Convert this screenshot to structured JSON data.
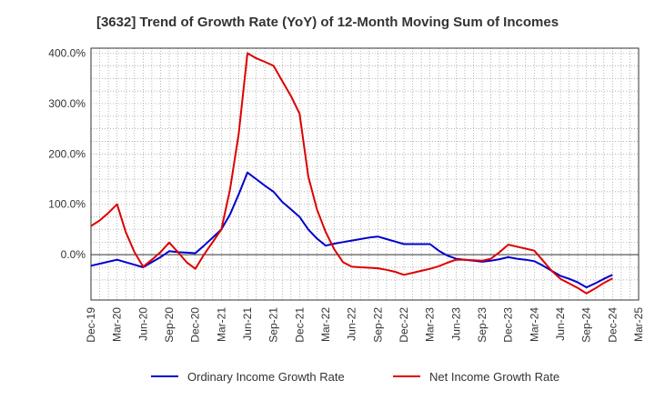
{
  "chart_data": {
    "type": "line",
    "title": "[3632]  Trend of Growth Rate (YoY) of 12-Month Moving Sum of Incomes",
    "xlabel": "",
    "ylabel": "",
    "x_ticks": [
      "Dec-19",
      "Mar-20",
      "Jun-20",
      "Sep-20",
      "Dec-20",
      "Mar-21",
      "Jun-21",
      "Sep-21",
      "Dec-21",
      "Mar-22",
      "Jun-22",
      "Sep-22",
      "Dec-22",
      "Mar-23",
      "Jun-23",
      "Sep-23",
      "Dec-23",
      "Mar-24",
      "Jun-24",
      "Sep-24",
      "Dec-24",
      "Mar-25"
    ],
    "y_ticks": [
      "400.0%",
      "300.0%",
      "200.0%",
      "100.0%",
      "0.0%"
    ],
    "y_tick_values": [
      400,
      300,
      200,
      100,
      0
    ],
    "ylim": [
      -90,
      410
    ],
    "x_range": [
      "Dec-19",
      "Mar-25"
    ],
    "grid": true,
    "legend_position": "bottom",
    "x": [
      "Dec-19",
      "Jan-20",
      "Feb-20",
      "Mar-20",
      "Apr-20",
      "May-20",
      "Jun-20",
      "Jul-20",
      "Aug-20",
      "Sep-20",
      "Oct-20",
      "Nov-20",
      "Dec-20",
      "Jan-21",
      "Feb-21",
      "Mar-21",
      "Apr-21",
      "May-21",
      "Jun-21",
      "Jul-21",
      "Aug-21",
      "Sep-21",
      "Oct-21",
      "Nov-21",
      "Dec-21",
      "Jan-22",
      "Feb-22",
      "Mar-22",
      "Apr-22",
      "May-22",
      "Jun-22",
      "Jul-22",
      "Aug-22",
      "Sep-22",
      "Oct-22",
      "Nov-22",
      "Dec-22",
      "Jan-23",
      "Feb-23",
      "Mar-23",
      "Apr-23",
      "May-23",
      "Jun-23",
      "Jul-23",
      "Aug-23",
      "Sep-23",
      "Oct-23",
      "Nov-23",
      "Dec-23",
      "Jan-24",
      "Feb-24",
      "Mar-24",
      "Apr-24",
      "May-24",
      "Jun-24",
      "Jul-24",
      "Aug-24",
      "Sep-24",
      "Oct-24",
      "Nov-24",
      "Dec-24"
    ],
    "series": [
      {
        "name": "Ordinary Income Growth Rate",
        "color": "#0000cc",
        "values": [
          -22,
          -18,
          -14,
          -10,
          -15,
          -20,
          -25,
          -15,
          -5,
          7,
          5,
          4,
          3,
          18,
          34,
          50,
          80,
          120,
          163,
          150,
          137,
          125,
          105,
          90,
          75,
          50,
          32,
          18,
          22,
          25,
          28,
          31,
          34,
          36,
          31,
          26,
          21,
          21,
          21,
          21,
          8,
          -2,
          -8,
          -10,
          -12,
          -14,
          -12,
          -9,
          -5,
          -8,
          -10,
          -13,
          -22,
          -32,
          -42,
          -48,
          -55,
          -65,
          -57,
          -48,
          -40
        ]
      },
      {
        "name": "Net Income Growth Rate",
        "color": "#dd0000",
        "values": [
          57,
          68,
          83,
          100,
          45,
          5,
          -24,
          -10,
          5,
          24,
          5,
          -15,
          -28,
          0,
          25,
          50,
          130,
          240,
          400,
          390,
          383,
          375,
          345,
          315,
          280,
          155,
          90,
          45,
          10,
          -15,
          -24,
          -25,
          -26,
          -27,
          -30,
          -34,
          -40,
          -36,
          -32,
          -28,
          -23,
          -16,
          -10,
          -10,
          -11,
          -12,
          -8,
          5,
          20,
          16,
          12,
          8,
          -12,
          -32,
          -48,
          -57,
          -66,
          -77,
          -67,
          -56,
          -47
        ]
      }
    ]
  }
}
